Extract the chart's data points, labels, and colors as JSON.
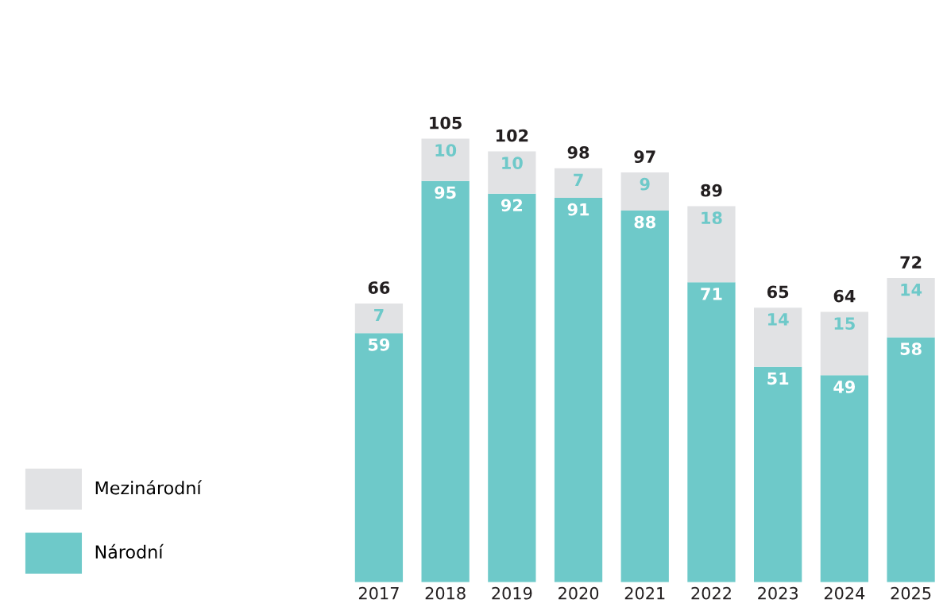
{
  "chart_data": {
    "type": "bar",
    "stacked": true,
    "data_labels": true,
    "legend": "bottom left",
    "grid": false,
    "categories": [
      "2017",
      "2018",
      "2019",
      "2020",
      "2021",
      "2022",
      "2023",
      "2024",
      "2025"
    ],
    "series": [
      {
        "name": "Národní",
        "color": "#6ec9c9",
        "values": [
          59,
          95,
          92,
          91,
          88,
          71,
          51,
          49,
          58
        ]
      },
      {
        "name": "Mezinárodní",
        "color": "#e1e2e4",
        "values": [
          7,
          10,
          10,
          7,
          9,
          18,
          14,
          15,
          14
        ]
      }
    ],
    "totals": [
      "66",
      "105",
      "102",
      "98",
      "97",
      "89",
      "65",
      "64",
      "72"
    ]
  }
}
